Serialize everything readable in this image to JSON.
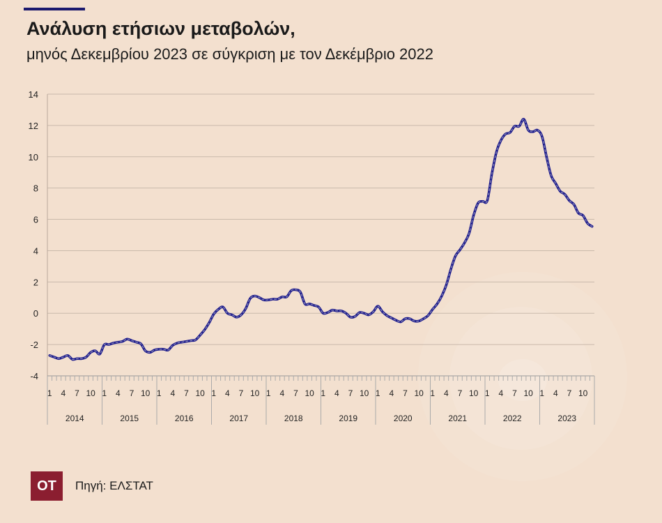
{
  "header": {
    "title": "Ανάλυση ετήσιων μεταβολών,",
    "subtitle": "μηνός Δεκεμβρίου 2023 σε σύγκριση με τον Δεκέμβριο 2022"
  },
  "footer": {
    "logo_text": "ΟΤ",
    "source": "Πηγή: ΕΛΣΤΑΤ"
  },
  "chart_data": {
    "type": "line",
    "title": "Ανάλυση ετήσιων μεταβολών,",
    "subtitle": "μηνός Δεκεμβρίου 2023 σε σύγκριση με τον Δεκέμβριο 2022",
    "xlabel": "",
    "ylabel": "",
    "ylim": [
      -4,
      14
    ],
    "yticks": [
      -4,
      -2,
      0,
      2,
      4,
      6,
      8,
      10,
      12,
      14
    ],
    "grid": true,
    "legend": "none",
    "line_color": "#1c1a8c",
    "month_tick_labels": [
      "1",
      "4",
      "7",
      "10"
    ],
    "years": [
      "2014",
      "2015",
      "2016",
      "2017",
      "2018",
      "2019",
      "2020",
      "2021",
      "2022",
      "2023"
    ],
    "values": [
      -2.7,
      -2.8,
      -2.9,
      -2.8,
      -2.7,
      -2.95,
      -2.9,
      -2.9,
      -2.8,
      -2.5,
      -2.4,
      -2.6,
      -2.0,
      -2.0,
      -1.9,
      -1.85,
      -1.8,
      -1.65,
      -1.75,
      -1.85,
      -1.95,
      -2.4,
      -2.5,
      -2.35,
      -2.3,
      -2.3,
      -2.35,
      -2.05,
      -1.9,
      -1.85,
      -1.8,
      -1.75,
      -1.7,
      -1.4,
      -1.05,
      -0.6,
      -0.05,
      0.25,
      0.4,
      0.0,
      -0.1,
      -0.25,
      -0.1,
      0.3,
      0.95,
      1.1,
      1.0,
      0.85,
      0.85,
      0.9,
      0.9,
      1.05,
      1.05,
      1.45,
      1.5,
      1.35,
      0.6,
      0.6,
      0.5,
      0.4,
      0.0,
      0.05,
      0.2,
      0.15,
      0.15,
      0.0,
      -0.25,
      -0.2,
      0.05,
      0.0,
      -0.1,
      0.1,
      0.45,
      0.1,
      -0.15,
      -0.3,
      -0.45,
      -0.55,
      -0.35,
      -0.35,
      -0.5,
      -0.5,
      -0.35,
      -0.15,
      0.25,
      0.6,
      1.1,
      1.8,
      2.8,
      3.65,
      4.05,
      4.5,
      5.1,
      6.25,
      7.05,
      7.15,
      7.2,
      8.9,
      10.3,
      11.05,
      11.45,
      11.55,
      11.95,
      11.95,
      12.4,
      11.7,
      11.6,
      11.7,
      11.3,
      10.0,
      8.8,
      8.3,
      7.8,
      7.6,
      7.2,
      6.95,
      6.4,
      6.25,
      5.75,
      5.55
    ]
  }
}
